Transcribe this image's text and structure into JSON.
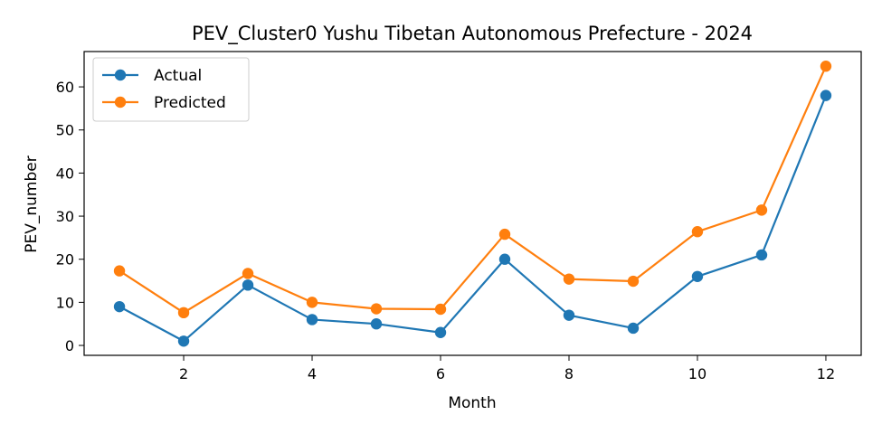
{
  "chart_data": {
    "type": "line",
    "title": "PEV_Cluster0 Yushu Tibetan Autonomous Prefecture - 2024",
    "xlabel": "Month",
    "ylabel": "PEV_number",
    "x": [
      1,
      2,
      3,
      4,
      5,
      6,
      7,
      8,
      9,
      10,
      11,
      12
    ],
    "xlim": [
      0.45,
      12.55
    ],
    "ylim": [
      -2.3,
      68.2
    ],
    "xticks": [
      2,
      4,
      6,
      8,
      10,
      12
    ],
    "yticks": [
      0,
      10,
      20,
      30,
      40,
      50,
      60
    ],
    "grid": false,
    "legend_position": "top-left",
    "series": [
      {
        "name": "Actual",
        "color": "#1f77b4",
        "values": [
          9,
          1,
          14,
          6,
          5,
          3,
          20,
          7,
          4,
          16,
          21,
          58
        ]
      },
      {
        "name": "Predicted",
        "color": "#ff7f0e",
        "values": [
          17.3,
          7.6,
          16.7,
          10.0,
          8.5,
          8.4,
          25.8,
          15.4,
          14.9,
          26.4,
          31.4,
          64.8
        ]
      }
    ]
  }
}
